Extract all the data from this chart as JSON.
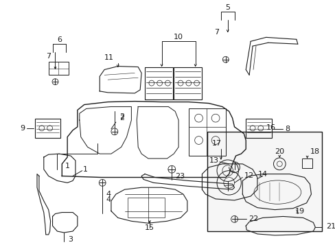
{
  "bg_color": "#ffffff",
  "fig_width": 4.89,
  "fig_height": 3.6,
  "dpi": 100,
  "lc": "#1a1a1a",
  "tc": "#1a1a1a",
  "fs": 7.5
}
